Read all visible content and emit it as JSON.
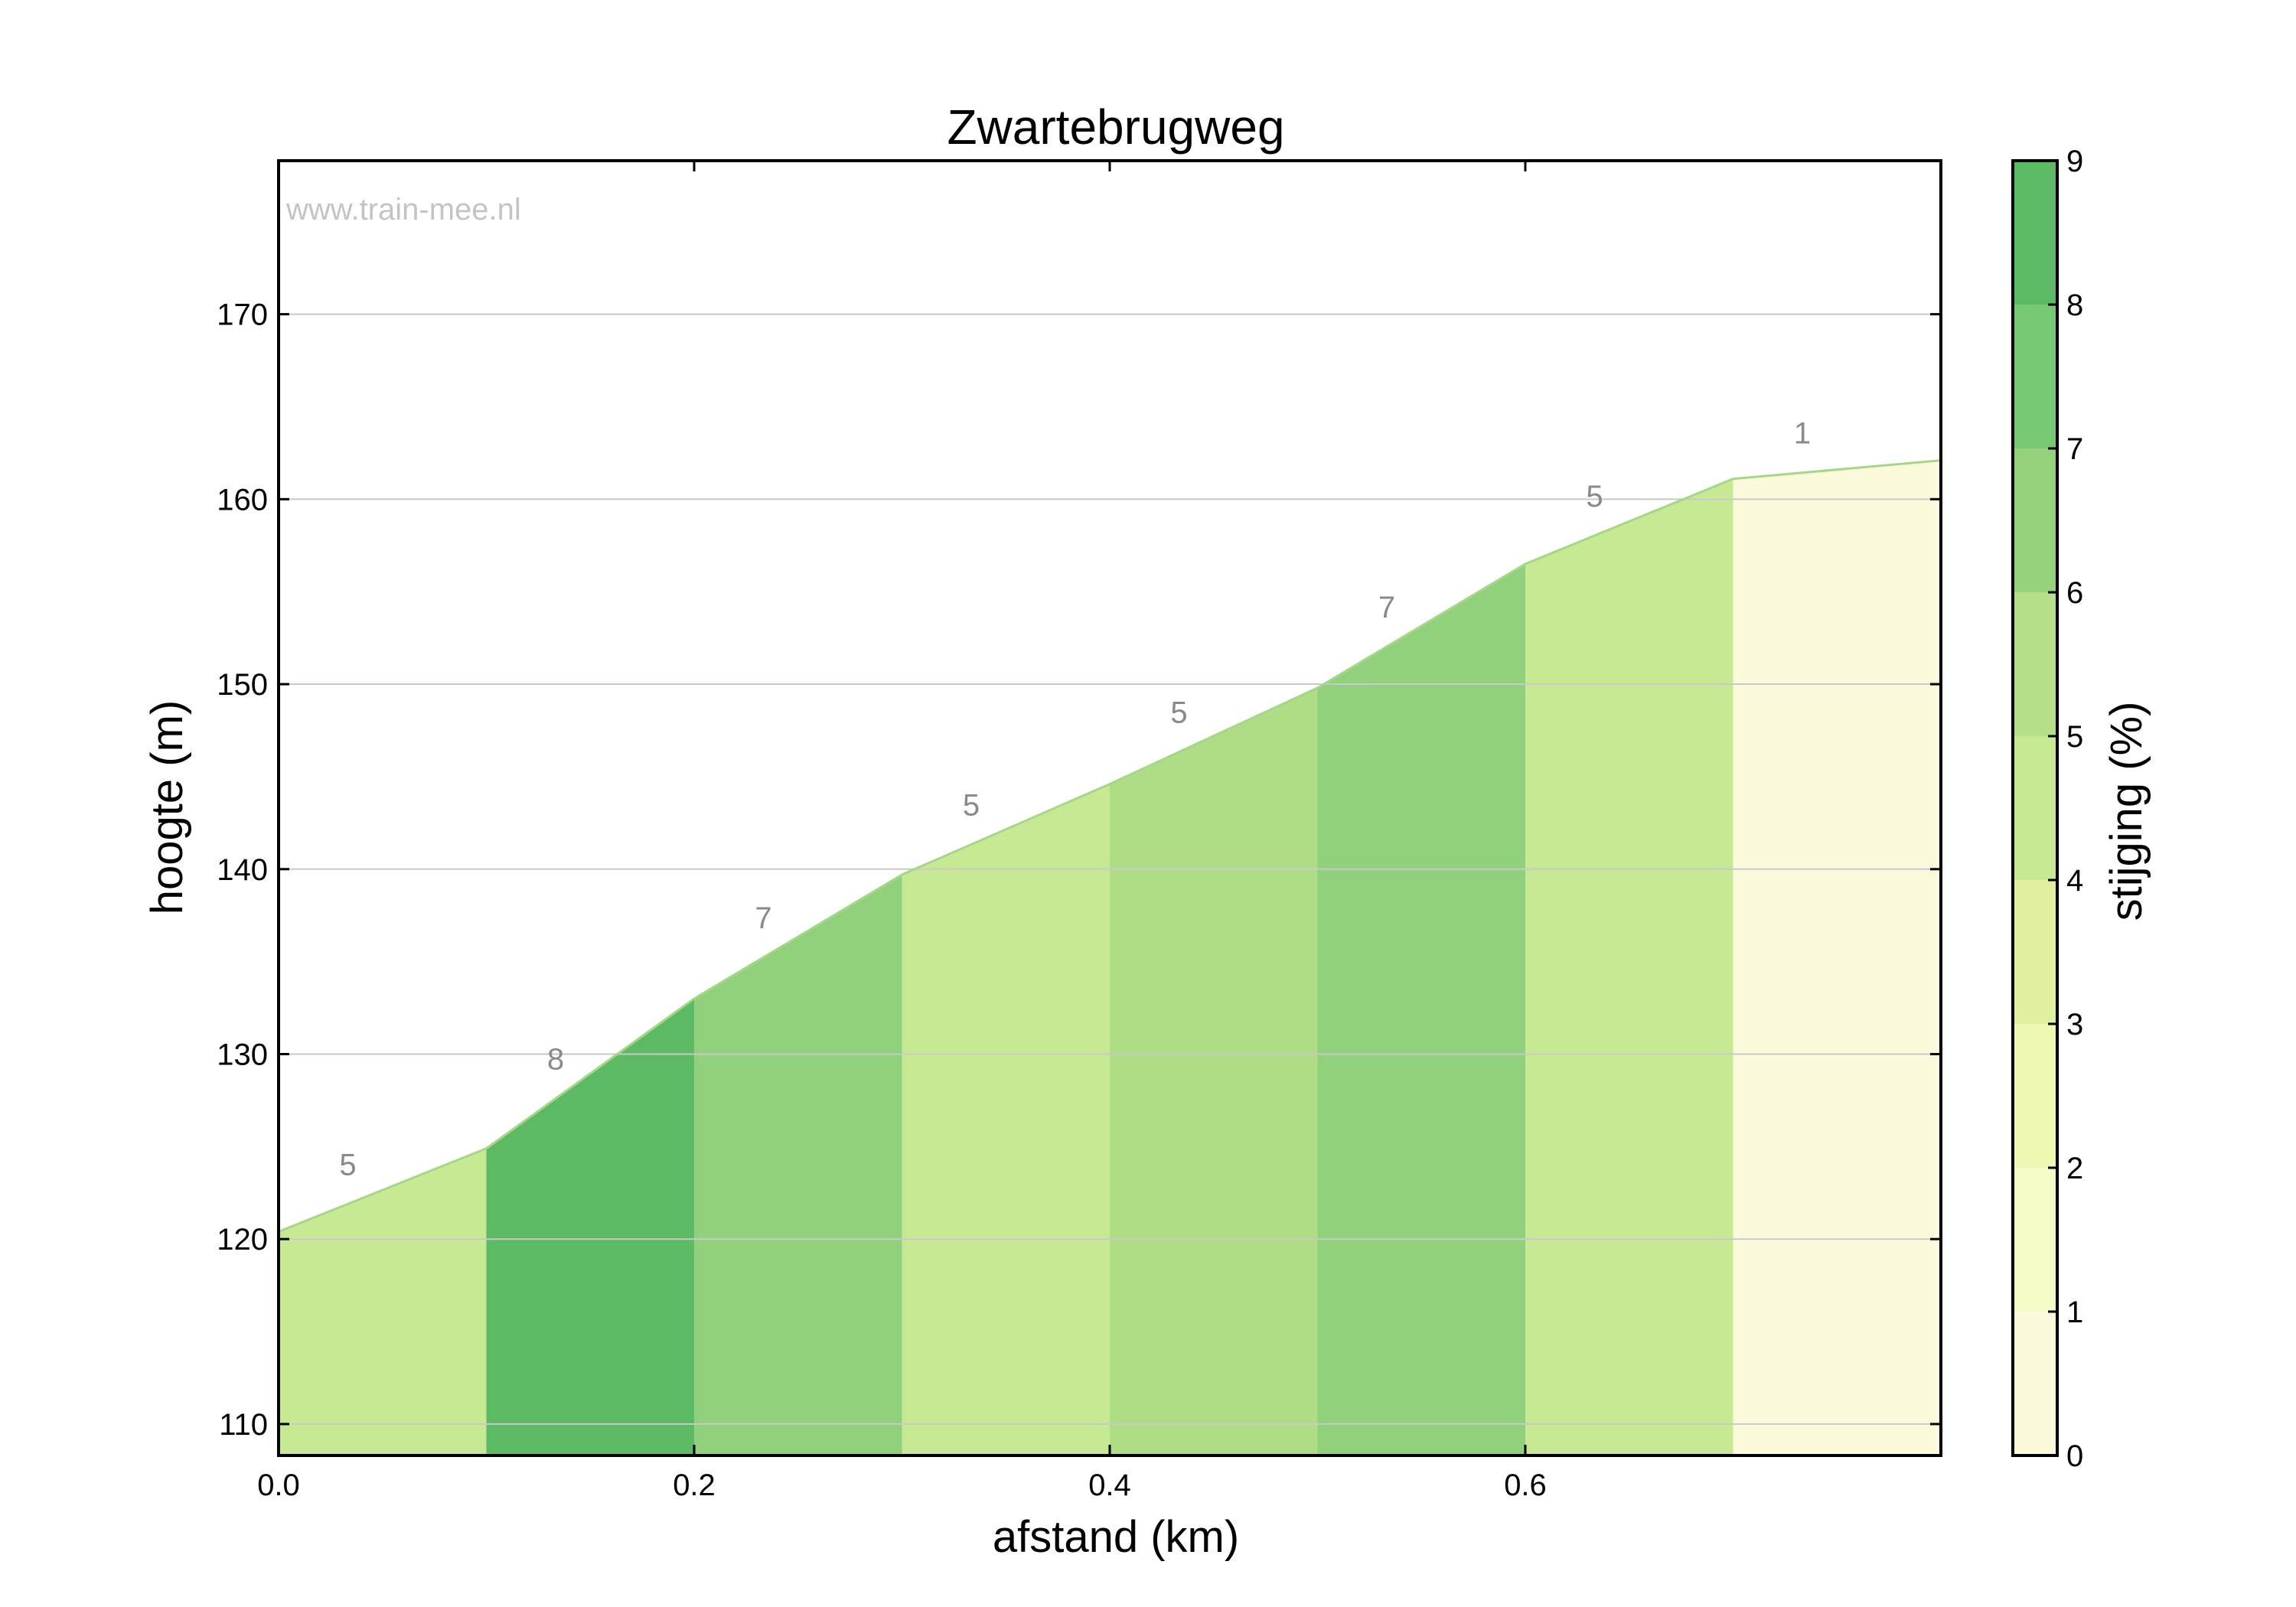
{
  "chart_data": {
    "type": "area",
    "title": "Zwartebrugweg",
    "watermark": "www.train-mee.nl",
    "xlabel": "afstand (km)",
    "ylabel": "hoogte (m)",
    "xlim": [
      0.0,
      0.8
    ],
    "ylim": [
      108.3,
      178.3
    ],
    "x_ticks": [
      0.0,
      0.2,
      0.4,
      0.6
    ],
    "x_tick_labels": [
      "0.0",
      "0.2",
      "0.4",
      "0.6"
    ],
    "y_ticks": [
      110,
      120,
      130,
      140,
      150,
      160,
      170
    ],
    "y_tick_labels": [
      "110",
      "120",
      "130",
      "140",
      "150",
      "160",
      "170"
    ],
    "grid": "horizontal",
    "profile": {
      "x": [
        0.0,
        0.1,
        0.2,
        0.3,
        0.4,
        0.5,
        0.6,
        0.7,
        0.8
      ],
      "y": [
        120.4,
        124.9,
        133.0,
        139.7,
        144.6,
        149.8,
        156.5,
        161.1,
        162.1
      ]
    },
    "segments": [
      {
        "label": "5",
        "color": "#c7e994"
      },
      {
        "label": "8",
        "color": "#5cb964"
      },
      {
        "label": "7",
        "color": "#91d17d"
      },
      {
        "label": "5",
        "color": "#c7e994"
      },
      {
        "label": "5",
        "color": "#aedd86"
      },
      {
        "label": "7",
        "color": "#91d17d"
      },
      {
        "label": "5",
        "color": "#c7e994"
      },
      {
        "label": "1",
        "color": "#fbfbdc"
      }
    ],
    "outline_color": "#a4d887",
    "colorbar": {
      "label": "stijging (%)",
      "range": [
        0,
        9
      ],
      "ticks": [
        0,
        1,
        2,
        3,
        4,
        5,
        6,
        7,
        8,
        9
      ],
      "tick_labels": [
        "0",
        "1",
        "2",
        "3",
        "4",
        "5",
        "6",
        "7",
        "8",
        "9"
      ],
      "colors": [
        "#fbfbdc",
        "#f5fbc6",
        "#eef8b2",
        "#dff0a0",
        "#c7e994",
        "#b5df88",
        "#95d27c",
        "#77c872",
        "#5cb964"
      ]
    }
  }
}
